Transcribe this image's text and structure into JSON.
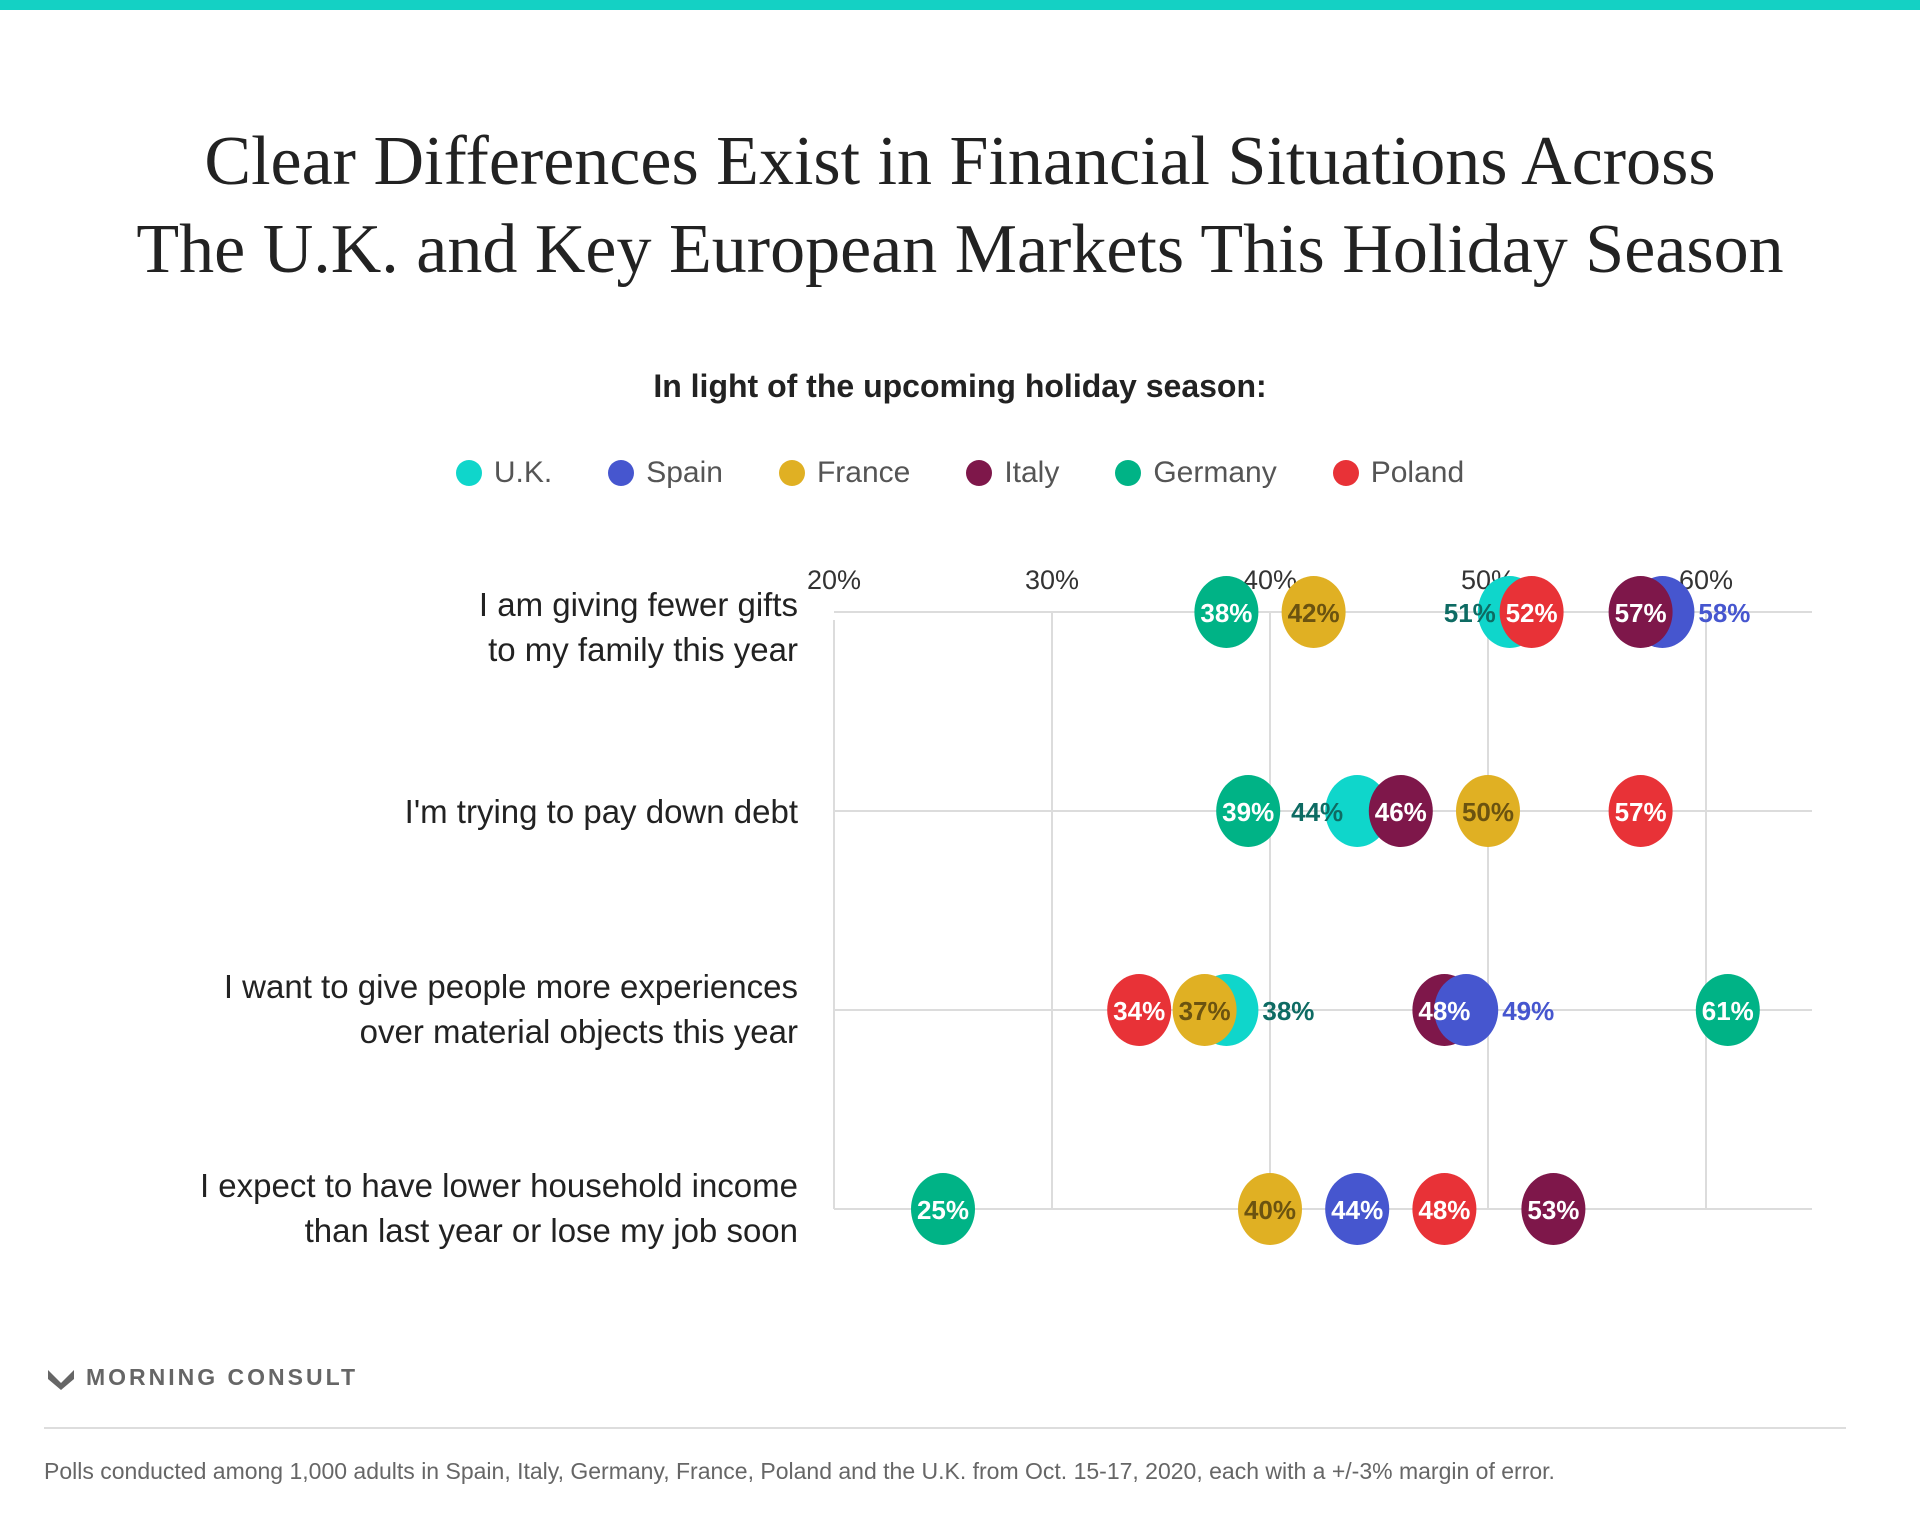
{
  "title_lines": [
    "Clear Differences Exist in Financial Situations Across",
    "The U.K. and Key European Markets This Holiday Season"
  ],
  "subtitle": "In light of the upcoming holiday season:",
  "legend": [
    {
      "name": "U.K.",
      "color": "#0fd6cb"
    },
    {
      "name": "Spain",
      "color": "#4656cf"
    },
    {
      "name": "France",
      "color": "#e0b023"
    },
    {
      "name": "Italy",
      "color": "#7e174a"
    },
    {
      "name": "Germany",
      "color": "#00b386"
    },
    {
      "name": "Poland",
      "color": "#e83237"
    }
  ],
  "chart_data": {
    "type": "scatter",
    "title": "In light of the upcoming holiday season:",
    "xlim": [
      20,
      65
    ],
    "x_ticks": [
      20,
      30,
      40,
      50,
      60
    ],
    "x_tick_labels": [
      "20%",
      "30%",
      "40%",
      "50%",
      "60%"
    ],
    "categories": [
      [
        "I am giving fewer gifts",
        "to my family this year"
      ],
      [
        "I'm trying to pay down debt"
      ],
      [
        "I want to give people more experiences",
        "over material objects this year"
      ],
      [
        "I expect to have lower household income",
        "than last year or lose my job soon"
      ]
    ],
    "rows": [
      [
        {
          "series": "Germany",
          "value": 38,
          "label": "38%",
          "pos": "inside"
        },
        {
          "series": "France",
          "value": 42,
          "label": "42%",
          "pos": "inside"
        },
        {
          "series": "U.K.",
          "value": 51,
          "label": "51%",
          "pos": "left"
        },
        {
          "series": "Poland",
          "value": 52,
          "label": "52%",
          "pos": "inside"
        },
        {
          "series": "Spain",
          "value": 58,
          "label": "58%",
          "pos": "right"
        },
        {
          "series": "Italy",
          "value": 57,
          "label": "57%",
          "pos": "inside"
        }
      ],
      [
        {
          "series": "Germany",
          "value": 39,
          "label": "39%",
          "pos": "inside"
        },
        {
          "series": "U.K.",
          "value": 44,
          "label": "44%",
          "pos": "left"
        },
        {
          "series": "Italy",
          "value": 46,
          "label": "46%",
          "pos": "inside"
        },
        {
          "series": "France",
          "value": 50,
          "label": "50%",
          "pos": "inside"
        },
        {
          "series": "Poland",
          "value": 57,
          "label": "57%",
          "pos": "inside"
        }
      ],
      [
        {
          "series": "Poland",
          "value": 34,
          "label": "34%",
          "pos": "inside"
        },
        {
          "series": "U.K.",
          "value": 38,
          "label": "38%",
          "pos": "right"
        },
        {
          "series": "France",
          "value": 37,
          "label": "37%",
          "pos": "inside"
        },
        {
          "series": "Italy",
          "value": 48,
          "label": "48%",
          "pos": "inside"
        },
        {
          "series": "Spain",
          "value": 49,
          "label": "49%",
          "pos": "right"
        },
        {
          "series": "Germany",
          "value": 61,
          "label": "61%",
          "pos": "inside"
        }
      ],
      [
        {
          "series": "Germany",
          "value": 25,
          "label": "25%",
          "pos": "inside"
        },
        {
          "series": "France",
          "value": 40,
          "label": "40%",
          "pos": "inside"
        },
        {
          "series": "Spain",
          "value": 44,
          "label": "44%",
          "pos": "inside"
        },
        {
          "series": "Poland",
          "value": 48,
          "label": "48%",
          "pos": "inside"
        },
        {
          "series": "Italy",
          "value": 53,
          "label": "53%",
          "pos": "inside"
        }
      ]
    ],
    "outside_label_colors": {
      "U.K.": "#0e6b63",
      "Spain": "#4656cf"
    },
    "dark_text_series": [
      "France"
    ],
    "dark_text_color": "#6b5310",
    "grid": true
  },
  "logo": "MORNING CONSULT",
  "footnote": "Polls conducted among 1,000 adults in Spain, Italy, Germany, France, Poland and the U.K. from Oct. 15-17, 2020, each with a +/-3% margin of error."
}
